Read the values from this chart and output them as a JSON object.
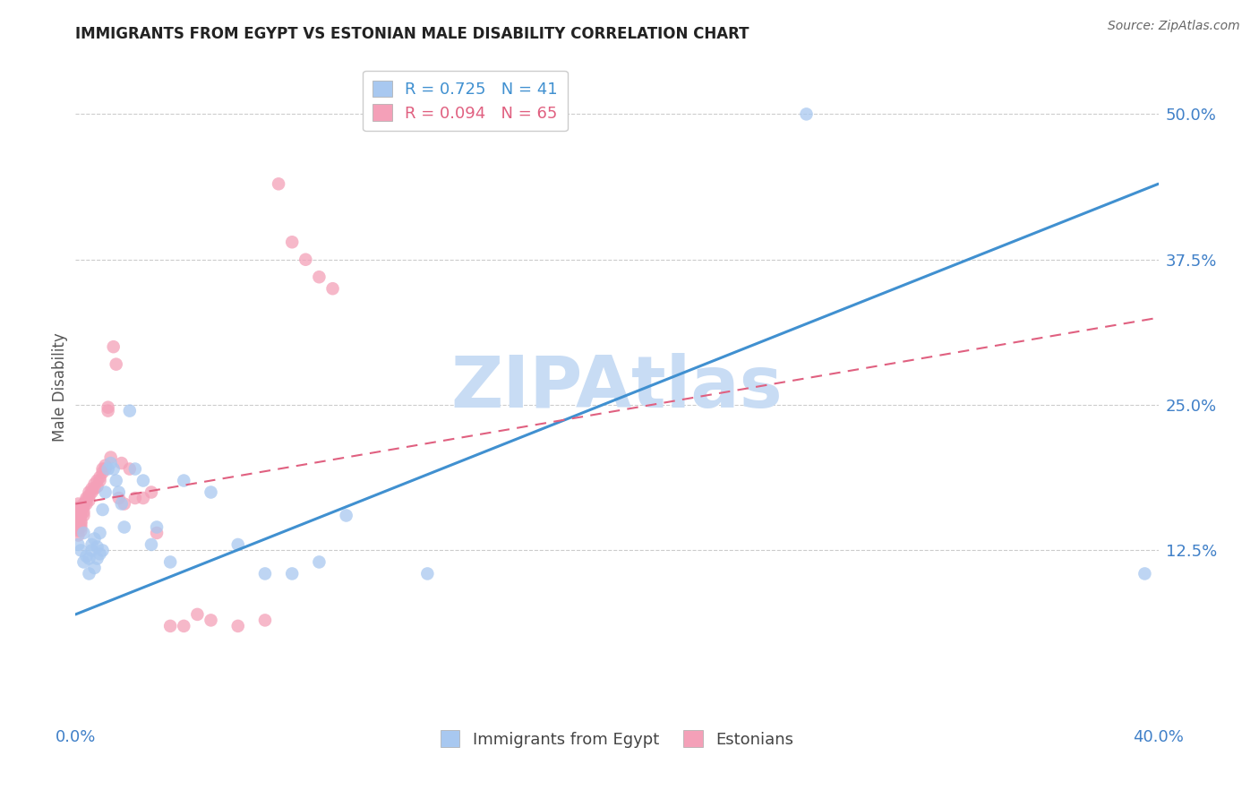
{
  "title": "IMMIGRANTS FROM EGYPT VS ESTONIAN MALE DISABILITY CORRELATION CHART",
  "source": "Source: ZipAtlas.com",
  "ylabel": "Male Disability",
  "xlim": [
    0.0,
    0.4
  ],
  "ylim": [
    -0.02,
    0.55
  ],
  "ytick_labels_right": [
    "12.5%",
    "25.0%",
    "37.5%",
    "50.0%"
  ],
  "ytick_vals_right": [
    0.125,
    0.25,
    0.375,
    0.5
  ],
  "blue_R": 0.725,
  "blue_N": 41,
  "pink_R": 0.094,
  "pink_N": 65,
  "blue_color": "#A8C8F0",
  "pink_color": "#F4A0B8",
  "blue_line_color": "#4090D0",
  "pink_line_color": "#E06080",
  "watermark": "ZIPAtlas",
  "watermark_color": "#C8DCF4",
  "background_color": "#FFFFFF",
  "blue_line_x0": 0.0,
  "blue_line_y0": 0.07,
  "blue_line_x1": 0.4,
  "blue_line_y1": 0.44,
  "pink_line_x0": 0.0,
  "pink_line_y0": 0.165,
  "pink_line_x1": 0.4,
  "pink_line_y1": 0.325,
  "blue_scatter_x": [
    0.001,
    0.002,
    0.003,
    0.003,
    0.004,
    0.005,
    0.005,
    0.006,
    0.006,
    0.007,
    0.007,
    0.008,
    0.008,
    0.009,
    0.009,
    0.01,
    0.01,
    0.011,
    0.012,
    0.013,
    0.014,
    0.015,
    0.016,
    0.017,
    0.018,
    0.02,
    0.022,
    0.025,
    0.028,
    0.03,
    0.035,
    0.04,
    0.05,
    0.06,
    0.07,
    0.08,
    0.09,
    0.1,
    0.13,
    0.27,
    0.395
  ],
  "blue_scatter_y": [
    0.13,
    0.125,
    0.115,
    0.14,
    0.12,
    0.118,
    0.105,
    0.13,
    0.125,
    0.11,
    0.135,
    0.128,
    0.118,
    0.122,
    0.14,
    0.125,
    0.16,
    0.175,
    0.195,
    0.2,
    0.195,
    0.185,
    0.175,
    0.165,
    0.145,
    0.245,
    0.195,
    0.185,
    0.13,
    0.145,
    0.115,
    0.185,
    0.175,
    0.13,
    0.105,
    0.105,
    0.115,
    0.155,
    0.105,
    0.5,
    0.105
  ],
  "pink_scatter_x": [
    0.0,
    0.0,
    0.0,
    0.001,
    0.001,
    0.001,
    0.001,
    0.001,
    0.001,
    0.001,
    0.001,
    0.001,
    0.002,
    0.002,
    0.002,
    0.002,
    0.002,
    0.002,
    0.002,
    0.003,
    0.003,
    0.003,
    0.003,
    0.004,
    0.004,
    0.004,
    0.005,
    0.005,
    0.005,
    0.006,
    0.006,
    0.007,
    0.007,
    0.008,
    0.008,
    0.009,
    0.009,
    0.01,
    0.01,
    0.011,
    0.011,
    0.012,
    0.012,
    0.013,
    0.014,
    0.015,
    0.016,
    0.017,
    0.018,
    0.02,
    0.022,
    0.025,
    0.028,
    0.03,
    0.035,
    0.04,
    0.045,
    0.05,
    0.06,
    0.07,
    0.075,
    0.08,
    0.085,
    0.09,
    0.095
  ],
  "pink_scatter_y": [
    0.155,
    0.15,
    0.145,
    0.165,
    0.162,
    0.158,
    0.155,
    0.15,
    0.148,
    0.145,
    0.142,
    0.138,
    0.16,
    0.158,
    0.155,
    0.15,
    0.148,
    0.145,
    0.142,
    0.165,
    0.162,
    0.158,
    0.155,
    0.17,
    0.168,
    0.165,
    0.175,
    0.172,
    0.168,
    0.178,
    0.175,
    0.182,
    0.178,
    0.185,
    0.18,
    0.188,
    0.185,
    0.195,
    0.192,
    0.198,
    0.195,
    0.248,
    0.245,
    0.205,
    0.3,
    0.285,
    0.17,
    0.2,
    0.165,
    0.195,
    0.17,
    0.17,
    0.175,
    0.14,
    0.06,
    0.06,
    0.07,
    0.065,
    0.06,
    0.065,
    0.44,
    0.39,
    0.375,
    0.36,
    0.35
  ]
}
